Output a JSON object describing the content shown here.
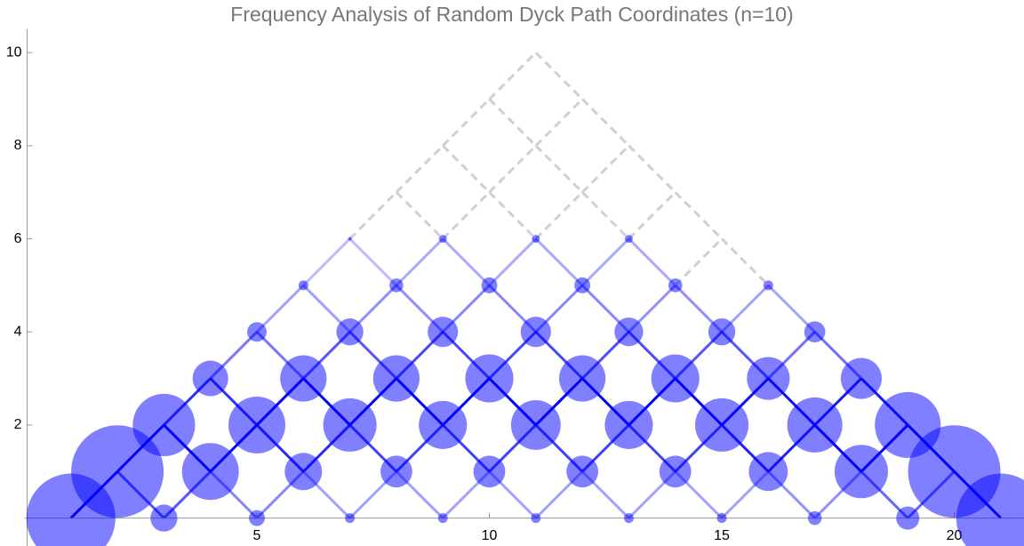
{
  "chart_data": {
    "type": "bubble",
    "title": "Frequency Analysis of Random Dyck Path Coordinates (n=10)",
    "x": [
      1,
      2,
      3,
      3,
      4,
      4,
      5,
      5,
      5,
      6,
      6,
      6,
      7,
      7,
      7,
      7,
      8,
      8,
      8,
      9,
      9,
      9,
      9,
      10,
      10,
      10,
      11,
      11,
      11,
      11,
      12,
      12,
      12,
      13,
      13,
      13,
      13,
      14,
      14,
      14,
      15,
      15,
      15,
      16,
      16,
      16,
      17,
      17,
      17,
      18,
      18,
      19,
      19,
      20,
      21
    ],
    "series": [
      {
        "color": "#0000ff",
        "values": [
          0,
          1,
          0,
          2,
          1,
          3,
          0,
          2,
          4,
          1,
          3,
          5,
          0,
          2,
          4,
          6,
          1,
          3,
          5,
          0,
          2,
          4,
          6,
          1,
          3,
          5,
          0,
          2,
          4,
          6,
          1,
          3,
          5,
          0,
          2,
          4,
          6,
          1,
          3,
          5,
          0,
          2,
          4,
          1,
          3,
          5,
          0,
          2,
          4,
          1,
          3,
          0,
          2,
          1,
          0
        ],
        "sizes": [
          250,
          270,
          23,
          123,
          102,
          40,
          8,
          102,
          12,
          44,
          68,
          3,
          3,
          90,
          23,
          0.4,
          32,
          68,
          6,
          3,
          73,
          29,
          2,
          32,
          73,
          8,
          3,
          78,
          29,
          2,
          32,
          68,
          8,
          3,
          73,
          26,
          2,
          32,
          73,
          6,
          3,
          90,
          23,
          48,
          58,
          3,
          6,
          96,
          14,
          90,
          53,
          17,
          137,
          270,
          250
        ]
      }
    ],
    "xlim": [
      0,
      21.5
    ],
    "ylim": [
      -0.6,
      10.5
    ],
    "xticks": [
      5,
      10,
      15,
      20
    ],
    "yticks": [
      2,
      4,
      6,
      8,
      10
    ]
  }
}
